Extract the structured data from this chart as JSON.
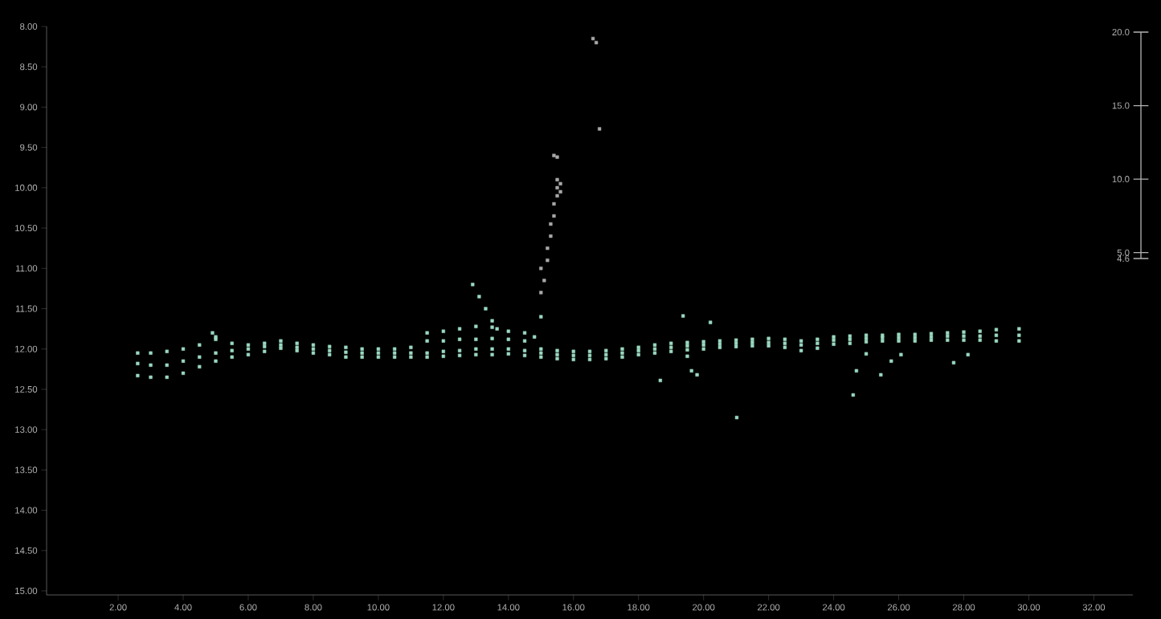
{
  "chart_data": {
    "type": "scatter",
    "marker": "square",
    "grid": false,
    "xlim": [
      -0.2,
      33.2
    ],
    "xticks": [
      {
        "value": 2,
        "label": "2.00"
      },
      {
        "value": 4,
        "label": "4.00"
      },
      {
        "value": 6,
        "label": "6.00"
      },
      {
        "value": 8,
        "label": "8.00"
      },
      {
        "value": 10,
        "label": "10.00"
      },
      {
        "value": 12,
        "label": "12.00"
      },
      {
        "value": 14,
        "label": "14.00"
      },
      {
        "value": 16,
        "label": "16.00"
      },
      {
        "value": 18,
        "label": "18.00"
      },
      {
        "value": 20,
        "label": "20.00"
      },
      {
        "value": 22,
        "label": "22.00"
      },
      {
        "value": 24,
        "label": "24.00"
      },
      {
        "value": 26,
        "label": "26.00"
      },
      {
        "value": 28,
        "label": "28.00"
      },
      {
        "value": 30,
        "label": "30.00"
      },
      {
        "value": 32,
        "label": "32.00"
      }
    ],
    "ylim": [
      15.05,
      8.0
    ],
    "yticks": [
      {
        "value": 8,
        "label": "8.00"
      },
      {
        "value": 8.5,
        "label": "8.50"
      },
      {
        "value": 9,
        "label": "9.00"
      },
      {
        "value": 9.5,
        "label": "9.50"
      },
      {
        "value": 10,
        "label": "10.00"
      },
      {
        "value": 10.5,
        "label": "10.50"
      },
      {
        "value": 11,
        "label": "11.00"
      },
      {
        "value": 11.5,
        "label": "11.50"
      },
      {
        "value": 12,
        "label": "12.00"
      },
      {
        "value": 12.5,
        "label": "12.50"
      },
      {
        "value": 13,
        "label": "13.00"
      },
      {
        "value": 13.5,
        "label": "13.50"
      },
      {
        "value": 14,
        "label": "14.00"
      },
      {
        "value": 14.5,
        "label": "14.50"
      },
      {
        "value": 15,
        "label": "15.00"
      }
    ],
    "y2lim": [
      4.6,
      20.0
    ],
    "y2ticks": [
      {
        "value": 4.6,
        "label": "4.6"
      },
      {
        "value": 5,
        "label": "5.0"
      },
      {
        "value": 10,
        "label": "10.0"
      },
      {
        "value": 15,
        "label": "15.0"
      },
      {
        "value": 20,
        "label": "20.0"
      }
    ],
    "series": [
      {
        "color": "#9ad9c0",
        "x": [
          2.6,
          2.6,
          2.6,
          3.0,
          3.0,
          3.0,
          3.5,
          3.5,
          3.5,
          4.0,
          4.0,
          4.0,
          4.5,
          4.5,
          4.5,
          5.0,
          5.0,
          5.0,
          5.5,
          5.5,
          5.5,
          6.0,
          6.0,
          6.0,
          6.5,
          6.5,
          6.5,
          7.0,
          7.0,
          7.0,
          7.5,
          7.5,
          7.5,
          8.0,
          8.0,
          8.0,
          8.5,
          8.5,
          8.5,
          9.0,
          9.0,
          9.0,
          9.5,
          9.5,
          9.5,
          10.0,
          10.0,
          10.0,
          10.5,
          10.5,
          10.5,
          11.0,
          11.0,
          11.0,
          11.5,
          11.5,
          11.5,
          11.5,
          12.0,
          12.0,
          12.0,
          12.0,
          12.5,
          12.5,
          12.5,
          12.5,
          13.0,
          13.0,
          13.0,
          13.0,
          13.5,
          13.5,
          13.5,
          13.5,
          14.0,
          14.0,
          14.0,
          14.0,
          14.5,
          14.5,
          14.5,
          14.5,
          15.0,
          15.0,
          15.0,
          15.5,
          15.5,
          15.5,
          16.0,
          16.0,
          16.0,
          16.5,
          16.5,
          16.5,
          17.0,
          17.0,
          17.0,
          17.5,
          17.5,
          17.5,
          18.0,
          18.0,
          18.0,
          18.5,
          18.5,
          18.5,
          19.0,
          19.0,
          19.0,
          19.5,
          19.5,
          19.5,
          20.0,
          20.0,
          20.0,
          20.5,
          20.5,
          20.5,
          21.0,
          21.0,
          21.0,
          21.5,
          21.5,
          21.5,
          22.0,
          22.0,
          22.0,
          22.5,
          22.5,
          22.5,
          23.0,
          23.0,
          23.0,
          23.5,
          23.5,
          23.5,
          24.0,
          24.0,
          24.0,
          24.5,
          24.5,
          24.5,
          25.0,
          25.0,
          25.0,
          25.5,
          25.5,
          25.5,
          26.0,
          26.0,
          26.0,
          26.5,
          26.5,
          26.5,
          27.0,
          27.0,
          27.0,
          27.5,
          27.5,
          27.5,
          28.0,
          28.0,
          28.0,
          28.5,
          28.5,
          28.5,
          29.0,
          29.0,
          29.0,
          29.7,
          29.7,
          29.7,
          12.9,
          13.1,
          13.3,
          13.5,
          13.65,
          14.8,
          15.0,
          18.67,
          19.37,
          19.5,
          19.63,
          19.8,
          20.21,
          21.02,
          24.6,
          24.7,
          25.0,
          25.45,
          25.77,
          26.07,
          27.69,
          28.13,
          4.9,
          5.0
        ],
        "values": [
          12.05,
          12.18,
          12.33,
          12.05,
          12.2,
          12.35,
          12.03,
          12.2,
          12.35,
          12.0,
          12.15,
          12.3,
          11.95,
          12.1,
          12.22,
          11.88,
          12.05,
          12.15,
          11.93,
          12.02,
          12.1,
          11.95,
          12.0,
          12.07,
          11.93,
          11.97,
          12.03,
          11.9,
          11.95,
          11.99,
          11.93,
          11.98,
          12.02,
          11.95,
          12.0,
          12.05,
          11.97,
          12.02,
          12.07,
          11.98,
          12.04,
          12.1,
          12.0,
          12.05,
          12.1,
          12.0,
          12.05,
          12.1,
          12.0,
          12.05,
          12.1,
          11.98,
          12.05,
          12.1,
          11.8,
          11.9,
          12.05,
          12.1,
          11.78,
          11.9,
          12.03,
          12.09,
          11.75,
          11.88,
          12.02,
          12.08,
          11.72,
          11.88,
          12.0,
          12.07,
          11.73,
          11.87,
          12.0,
          12.07,
          11.78,
          11.88,
          12.0,
          12.06,
          11.8,
          11.9,
          12.02,
          12.08,
          12.0,
          12.05,
          12.1,
          12.02,
          12.07,
          12.12,
          12.03,
          12.08,
          12.13,
          12.03,
          12.08,
          12.13,
          12.02,
          12.07,
          12.12,
          12.0,
          12.05,
          12.1,
          11.98,
          12.02,
          12.07,
          11.95,
          12.0,
          12.05,
          11.93,
          11.98,
          12.03,
          11.92,
          11.96,
          12.01,
          11.91,
          11.95,
          12.0,
          11.9,
          11.94,
          11.98,
          11.89,
          11.93,
          11.97,
          11.88,
          11.92,
          11.96,
          11.87,
          11.92,
          11.96,
          11.88,
          11.93,
          11.98,
          11.9,
          11.95,
          12.02,
          11.88,
          11.93,
          11.99,
          11.85,
          11.89,
          11.94,
          11.84,
          11.88,
          11.93,
          11.83,
          11.87,
          11.91,
          11.83,
          11.86,
          11.9,
          11.82,
          11.86,
          11.9,
          11.82,
          11.86,
          11.9,
          11.81,
          11.85,
          11.89,
          11.8,
          11.84,
          11.89,
          11.79,
          11.84,
          11.89,
          11.78,
          11.84,
          11.89,
          11.76,
          11.83,
          11.9,
          11.75,
          11.83,
          11.9,
          11.2,
          11.35,
          11.5,
          11.65,
          11.75,
          11.85,
          11.6,
          12.39,
          11.59,
          12.09,
          12.27,
          12.32,
          11.67,
          12.85,
          12.57,
          12.27,
          12.06,
          12.32,
          12.15,
          12.07,
          12.17,
          12.07,
          11.8,
          11.85
        ]
      },
      {
        "color": "#a8a8a8",
        "x": [
          15.0,
          15.1,
          15.0,
          15.2,
          15.2,
          15.3,
          15.3,
          15.4,
          15.4,
          15.5,
          15.5,
          15.6,
          15.6,
          15.5,
          15.4,
          15.5,
          16.6,
          16.7,
          16.8
        ],
        "values": [
          11.3,
          11.15,
          11.0,
          10.9,
          10.75,
          10.6,
          10.45,
          10.35,
          10.2,
          10.1,
          10.0,
          10.05,
          9.95,
          9.9,
          9.6,
          9.62,
          8.15,
          8.2,
          9.27
        ]
      }
    ]
  }
}
